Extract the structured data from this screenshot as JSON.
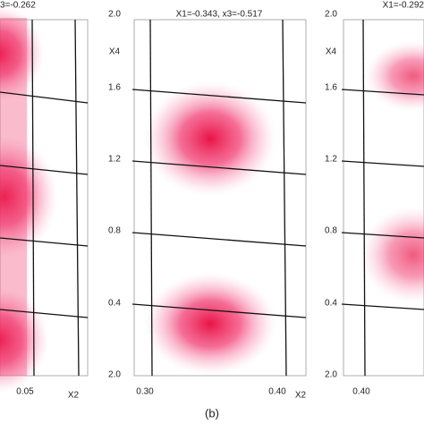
{
  "panels": [
    {
      "title": "3=-0.262",
      "x_labels": [
        "0.05",
        "X2"
      ]
    },
    {
      "title": "X1=-0.343, x3=-0.517",
      "y_labels": [
        "2.0",
        "X4",
        "1.6",
        "1.2",
        "0.8",
        "0.4",
        "2.0"
      ],
      "x_labels": [
        "0.30",
        "0.40",
        "X2"
      ],
      "caption": "(b)"
    },
    {
      "title": "X1=-0.292",
      "y_labels": [
        "2.0",
        "X4",
        "1.6",
        "1.2",
        "0.8",
        "0.4",
        "2.0"
      ],
      "x_labels": [
        "0.40"
      ]
    }
  ]
}
